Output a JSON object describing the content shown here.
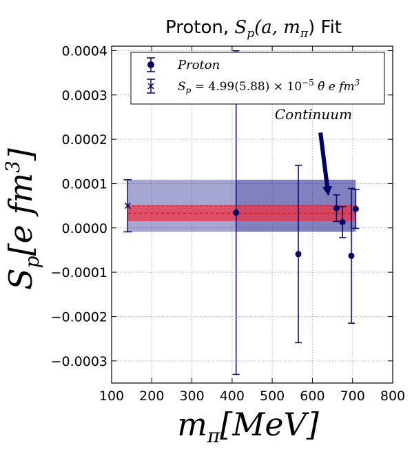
{
  "chart_data": {
    "type": "scatter",
    "title_prefix": "Proton, ",
    "title_math": "S",
    "title_sub": "p",
    "title_args": "(a, m",
    "title_args_sub": "π",
    "title_suffix": ") Fit",
    "xlabel_main": "m",
    "xlabel_sub": "π",
    "xlabel_units": "[MeV]",
    "ylabel_main": "S",
    "ylabel_sub": "p",
    "ylabel_units": "[e fm",
    "ylabel_exp": "3",
    "ylabel_close": "]",
    "xlim": [
      100,
      800
    ],
    "ylim": [
      -0.00035,
      0.00041
    ],
    "x_ticks": [
      100,
      200,
      300,
      400,
      500,
      600,
      700,
      800
    ],
    "x_tick_labels": [
      "100",
      "200",
      "300",
      "400",
      "500",
      "600",
      "700",
      "800"
    ],
    "y_ticks": [
      -0.0003,
      -0.0002,
      -0.0001,
      0.0,
      0.0001,
      0.0002,
      0.0003,
      0.0004
    ],
    "y_tick_labels": [
      "−0.0003",
      "−0.0002",
      "−0.0001",
      "0.0000",
      "0.0001",
      "0.0002",
      "0.0003",
      "0.0004"
    ],
    "grid": true,
    "legend_position": "top-center",
    "legend": {
      "proton": "Proton",
      "fit_prefix": "S",
      "fit_sub": "p",
      "fit_text": " = 4.99(5.88) × 10",
      "fit_exp": "−5",
      "fit_suffix": " θ̄ e fm",
      "fit_suffix_exp": "3"
    },
    "annotation": {
      "text": "Continuum",
      "arrow_from": [
        620,
        0.000215
      ],
      "arrow_to": [
        640,
        7.2e-05
      ]
    },
    "series": [
      {
        "name": "Proton",
        "color": "#000066",
        "points": [
          {
            "x": 410,
            "y": 3.45e-05,
            "err": 0.000365
          },
          {
            "x": 565,
            "y": -5.9e-05,
            "err": 0.0002
          },
          {
            "x": 660,
            "y": 4.45e-05,
            "err": 3e-05
          },
          {
            "x": 675,
            "y": 1.3e-05,
            "err": 3.5e-05
          },
          {
            "x": 697,
            "y": -6.3e-05,
            "err": 0.000152
          },
          {
            "x": 708,
            "y": 4.3e-05,
            "err": 4.4e-05
          }
        ]
      }
    ],
    "fit_band": {
      "x_range": [
        140,
        708
      ],
      "y_center": 4.99e-05,
      "y_err": 5.88e-05,
      "color": "#00007f"
    },
    "continuum_band": {
      "x_range": [
        140,
        708
      ],
      "y_center": 3.32e-05,
      "y_err": 1.8e-05,
      "color": "#ee3344",
      "line_color": "#ff0000"
    },
    "fit_marker": {
      "x": 140,
      "y": 4.99e-05,
      "err": 5.88e-05
    }
  }
}
